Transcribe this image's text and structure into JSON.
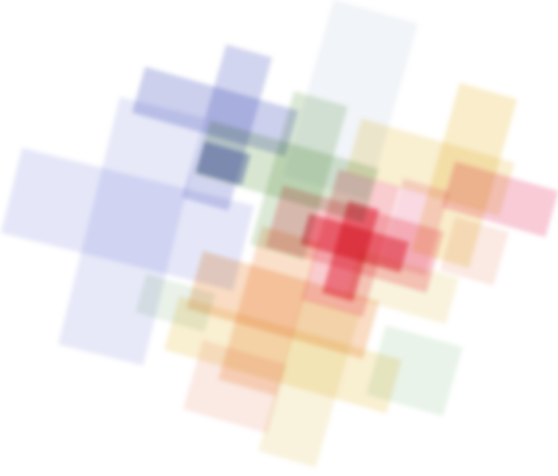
{
  "image": {
    "colors": {
      "background": "#ffffff",
      "blue": "#8f97d8",
      "lavender": "#cfd3f2",
      "green": "#a8c89a",
      "yellow": "#f1d78c",
      "orange": "#f2b27a",
      "red": "#e8364f",
      "pink": "#f3a0b6",
      "peach": "#f6c7b8"
    }
  }
}
